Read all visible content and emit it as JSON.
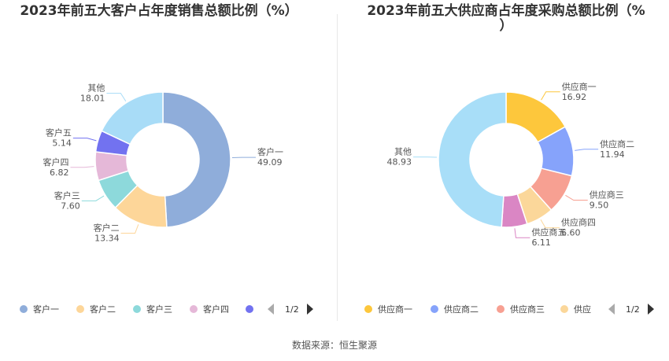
{
  "footer": {
    "source_label": "数据来源：",
    "source_value": "恒生聚源"
  },
  "pager": {
    "left_page": "1/2",
    "right_page": "1/2"
  },
  "chart_data": [
    {
      "type": "pie",
      "donut": true,
      "title": "2023年前五大客户占年度销售总额比例（%）",
      "unit": "%",
      "categories": [
        "客户一",
        "客户二",
        "客户三",
        "客户四",
        "客户五",
        "其他"
      ],
      "values": [
        49.09,
        13.34,
        7.6,
        6.82,
        5.14,
        18.01
      ],
      "value_labels": [
        "49.09",
        "13.34",
        "7.60",
        "6.82",
        "5.14",
        "18.01"
      ],
      "colors": [
        "#8fadda",
        "#fdd699",
        "#8dd9db",
        "#e5b8d8",
        "#7272f0",
        "#a8dcf7"
      ],
      "legend": {
        "placement": "bottom",
        "visible_items": [
          "客户一",
          "客户二",
          "客户三",
          "客户四"
        ],
        "has_fifth_marker": true
      }
    },
    {
      "type": "pie",
      "donut": true,
      "title": "2023年前五大供应商占年度采购总额比例（%）",
      "unit": "%",
      "categories": [
        "供应商一",
        "供应商二",
        "供应商三",
        "供应商四",
        "供应商五",
        "其他"
      ],
      "values": [
        16.92,
        11.94,
        9.5,
        6.6,
        6.11,
        48.93
      ],
      "value_labels": [
        "16.92",
        "11.94",
        "9.50",
        "6.60",
        "6.11",
        "48.93"
      ],
      "colors": [
        "#fdc73c",
        "#86a3fb",
        "#f7a092",
        "#fbd79a",
        "#da86c4",
        "#a8def8"
      ],
      "legend": {
        "placement": "bottom",
        "visible_items": [
          "供应商一",
          "供应商二",
          "供应商三"
        ],
        "truncated_item": "供应"
      }
    }
  ]
}
